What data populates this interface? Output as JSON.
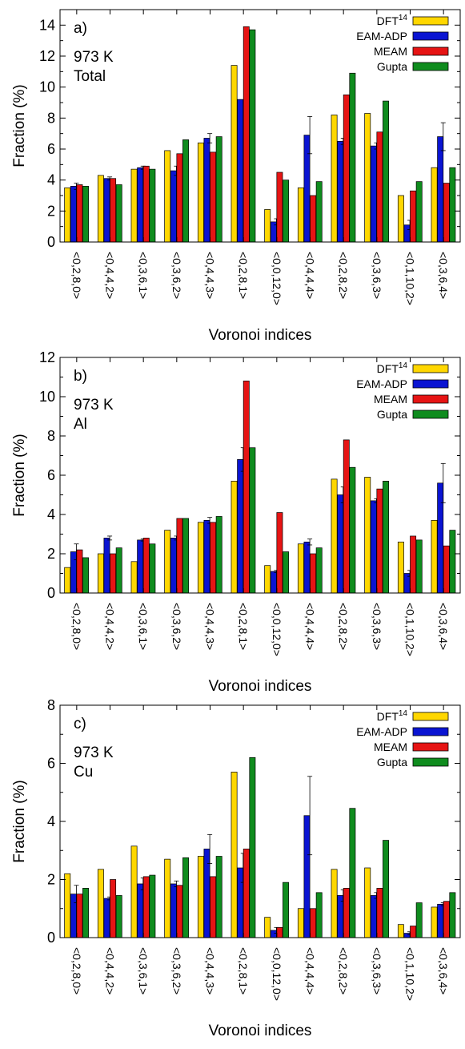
{
  "colors": {
    "DFT": "#ffd700",
    "EAM-ADP": "#0a14d2",
    "MEAM": "#e61414",
    "Gupta": "#0f8c1e"
  },
  "chart_data": [
    {
      "type": "bar",
      "panel_label": "a)",
      "annotation": [
        "973 K",
        "Total"
      ],
      "xlabel": "Voronoi indices",
      "ylabel": "Fraction (%)",
      "ylim": [
        0,
        15
      ],
      "yticks": [
        0,
        2,
        4,
        6,
        8,
        10,
        12,
        14
      ],
      "grid": false,
      "legend_position": "top-right",
      "categories": [
        "<0,2,8,0>",
        "<0,4,4,2>",
        "<0,3,6,1>",
        "<0,3,6,2>",
        "<0,4,4,3>",
        "<0,2,8,1>",
        "<0,0,12,0>",
        "<0,4,4,4>",
        "<0,2,8,2>",
        "<0,3,6,3>",
        "<0,1,10,2>",
        "<0,3,6,4>"
      ],
      "series": [
        {
          "name": "DFT",
          "sup": "14",
          "color_key": "DFT",
          "values": [
            3.5,
            4.3,
            4.7,
            5.9,
            6.4,
            11.4,
            2.1,
            3.5,
            8.2,
            8.3,
            3.0,
            4.8
          ]
        },
        {
          "name": "EAM-ADP",
          "color_key": "EAM-ADP",
          "values": [
            3.6,
            4.1,
            4.8,
            4.6,
            6.7,
            9.2,
            1.3,
            6.9,
            6.5,
            6.2,
            1.1,
            6.8
          ],
          "errors": [
            0.2,
            0.1,
            0.1,
            0.3,
            0.3,
            0.0,
            0.2,
            1.2,
            0.2,
            0.2,
            0.3,
            0.9
          ]
        },
        {
          "name": "MEAM",
          "color_key": "MEAM",
          "values": [
            3.7,
            4.1,
            4.9,
            5.7,
            5.8,
            13.9,
            4.5,
            3.0,
            9.5,
            7.1,
            3.3,
            3.8
          ]
        },
        {
          "name": "Gupta",
          "color_key": "Gupta",
          "values": [
            3.6,
            3.7,
            4.7,
            6.6,
            6.8,
            13.7,
            4.0,
            3.9,
            10.9,
            9.1,
            3.9,
            4.8
          ]
        }
      ]
    },
    {
      "type": "bar",
      "panel_label": "b)",
      "annotation": [
        "973 K",
        "Al"
      ],
      "xlabel": "Voronoi indices",
      "ylabel": "Fraction (%)",
      "ylim": [
        0,
        12
      ],
      "yticks": [
        0,
        2,
        4,
        6,
        8,
        10,
        12
      ],
      "grid": false,
      "legend_position": "top-right",
      "categories": [
        "<0,2,8,0>",
        "<0,4,4,2>",
        "<0,3,6,1>",
        "<0,3,6,2>",
        "<0,4,4,3>",
        "<0,2,8,1>",
        "<0,0,12,0>",
        "<0,4,4,4>",
        "<0,2,8,2>",
        "<0,3,6,3>",
        "<0,1,10,2>",
        "<0,3,6,4>"
      ],
      "series": [
        {
          "name": "DFT",
          "sup": "14",
          "color_key": "DFT",
          "values": [
            1.3,
            2.0,
            1.6,
            3.2,
            3.6,
            5.7,
            1.4,
            2.5,
            5.8,
            5.9,
            2.6,
            3.7
          ]
        },
        {
          "name": "EAM-ADP",
          "color_key": "EAM-ADP",
          "values": [
            2.1,
            2.8,
            2.7,
            2.8,
            3.7,
            6.8,
            1.1,
            2.6,
            5.0,
            4.7,
            1.0,
            5.6
          ],
          "errors": [
            0.4,
            0.1,
            0.05,
            0.1,
            0.15,
            0.6,
            0.05,
            0.15,
            0.4,
            0.1,
            0.15,
            1.0
          ]
        },
        {
          "name": "MEAM",
          "color_key": "MEAM",
          "values": [
            2.2,
            2.0,
            2.8,
            3.8,
            3.6,
            10.8,
            4.1,
            2.0,
            7.8,
            5.3,
            2.9,
            2.4
          ]
        },
        {
          "name": "Gupta",
          "color_key": "Gupta",
          "values": [
            1.8,
            2.3,
            2.5,
            3.8,
            3.9,
            7.4,
            2.1,
            2.3,
            6.4,
            5.7,
            2.7,
            3.2
          ]
        }
      ]
    },
    {
      "type": "bar",
      "panel_label": "c)",
      "annotation": [
        "973 K",
        "Cu"
      ],
      "xlabel": "Voronoi indices",
      "ylabel": "Fraction (%)",
      "ylim": [
        0,
        8
      ],
      "yticks": [
        0,
        2,
        4,
        6,
        8
      ],
      "grid": false,
      "legend_position": "top-right",
      "categories": [
        "<0,2,8,0>",
        "<0,4,4,2>",
        "<0,3,6,1>",
        "<0,3,6,2>",
        "<0,4,4,3>",
        "<0,2,8,1>",
        "<0,0,12,0>",
        "<0,4,4,4>",
        "<0,2,8,2>",
        "<0,3,6,3>",
        "<0,1,10,2>",
        "<0,3,6,4>"
      ],
      "series": [
        {
          "name": "DFT",
          "sup": "14",
          "color_key": "DFT",
          "values": [
            2.2,
            2.35,
            3.15,
            2.7,
            2.8,
            5.7,
            0.7,
            1.0,
            2.35,
            2.4,
            0.45,
            1.05
          ]
        },
        {
          "name": "EAM-ADP",
          "color_key": "EAM-ADP",
          "values": [
            1.5,
            1.35,
            1.85,
            1.85,
            3.05,
            2.4,
            0.25,
            4.2,
            1.45,
            1.45,
            0.15,
            1.15
          ],
          "errors": [
            0.3,
            0.05,
            0.2,
            0.1,
            0.5,
            0.5,
            0.1,
            1.35,
            0.2,
            0.1,
            0.05,
            0.05
          ]
        },
        {
          "name": "MEAM",
          "color_key": "MEAM",
          "values": [
            1.5,
            2.0,
            2.1,
            1.8,
            2.1,
            3.05,
            0.35,
            1.0,
            1.7,
            1.7,
            0.4,
            1.25
          ]
        },
        {
          "name": "Gupta",
          "color_key": "Gupta",
          "values": [
            1.7,
            1.45,
            2.15,
            2.75,
            2.8,
            6.2,
            1.9,
            1.55,
            4.45,
            3.35,
            1.2,
            1.55
          ]
        }
      ]
    }
  ]
}
